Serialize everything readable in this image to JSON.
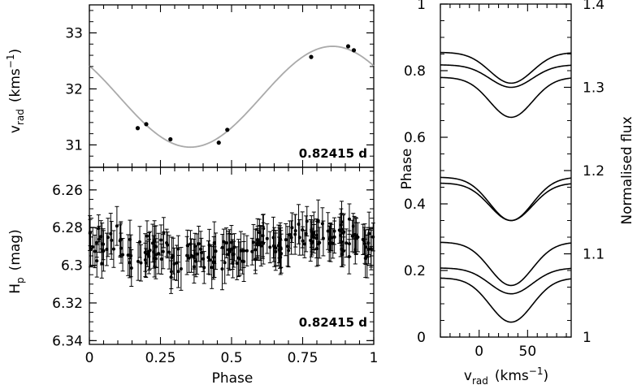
{
  "chart_data": [
    {
      "type": "scatter",
      "panel": "radial-velocity",
      "xlim": [
        0,
        1
      ],
      "ylim": [
        30.6,
        33.5
      ],
      "yticks": [
        "31",
        "32",
        "33"
      ],
      "ylabel": {
        "main": "v",
        "sub": "rad",
        "unit": "(kms",
        "exp": "−1",
        "close": ")"
      },
      "period_label": "0.82415 d",
      "fit": {
        "mean": 31.86,
        "amplitude": 0.9,
        "min_phase": 0.355
      },
      "series": [
        {
          "points": [
            [
              0.17,
              31.3
            ],
            [
              0.2,
              31.37
            ],
            [
              0.285,
              31.1
            ],
            [
              0.455,
              31.04
            ],
            [
              0.485,
              31.27
            ],
            [
              0.78,
              32.57
            ],
            [
              0.91,
              32.76
            ],
            [
              0.93,
              32.69
            ]
          ]
        }
      ]
    },
    {
      "type": "scatter",
      "panel": "photometry",
      "xlim": [
        0,
        1
      ],
      "ylim": [
        6.342,
        6.248
      ],
      "yticks": [
        "6.26",
        "6.28",
        "6.3",
        "6.32",
        "6.34"
      ],
      "xticks": [
        "0",
        "0.25",
        "0.5",
        "0.75",
        "1"
      ],
      "xlabel": "Phase",
      "ylabel": {
        "main": "H",
        "sub": "p",
        "unit": "(mag)"
      },
      "period_label": "0.82415 d",
      "n_points": 220,
      "baseline": 6.29,
      "scatter": 0.006,
      "error": 0.0095
    },
    {
      "type": "line",
      "panel": "line-profiles",
      "xlim": [
        -40,
        95
      ],
      "xticks": [
        "0",
        "50"
      ],
      "xlabel": {
        "main": "v",
        "sub": "rad",
        "unit": "(kms",
        "exp": "−1",
        "close": ")"
      },
      "left_axis": {
        "label": "Phase",
        "range": [
          0,
          1
        ],
        "ticks": [
          "0",
          "0.2",
          "0.4",
          "0.6",
          "0.8",
          "1"
        ]
      },
      "right_axis": {
        "label": "Normalised flux",
        "range": [
          1,
          1.4
        ],
        "ticks": [
          "1",
          "1.1",
          "1.2",
          "1.3",
          "1.4"
        ]
      },
      "profile": {
        "center": 33,
        "sigma": 22
      },
      "series": [
        {
          "offset": 1.342,
          "depth": 0.037
        },
        {
          "offset": 1.327,
          "depth": 0.027
        },
        {
          "offset": 1.312,
          "depth": 0.048
        },
        {
          "offset": 1.192,
          "depth": 0.052
        },
        {
          "offset": 1.185,
          "depth": 0.045
        },
        {
          "offset": 1.114,
          "depth": 0.052
        },
        {
          "offset": 1.083,
          "depth": 0.031
        },
        {
          "offset": 1.071,
          "depth": 0.053
        }
      ]
    }
  ]
}
